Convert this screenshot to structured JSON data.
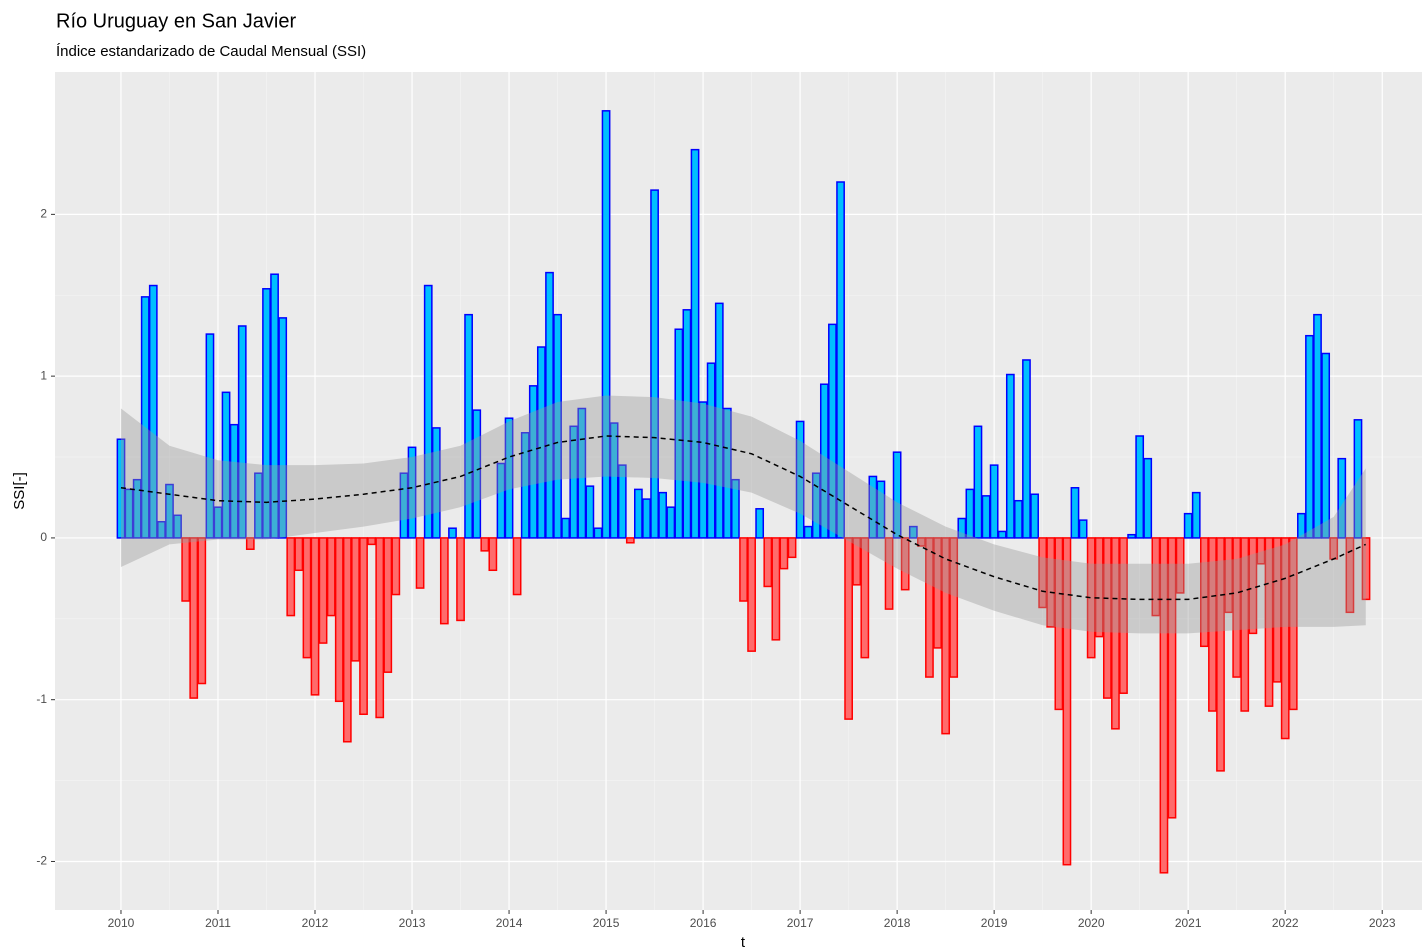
{
  "chart_data": {
    "type": "bar",
    "title": "Río Uruguay en San Javier",
    "subtitle": "Índice estandarizado de Caudal Mensual (SSI)",
    "x_label": "t",
    "y_label": "SSI[-]",
    "xlim": [
      2009.32,
      2023.41
    ],
    "ylim": [
      -2.3,
      2.88
    ],
    "xticks": [
      2010,
      2011,
      2012,
      2013,
      2014,
      2015,
      2016,
      2017,
      2018,
      2019,
      2020,
      2021,
      2022,
      2023
    ],
    "yticks": [
      -2,
      -1,
      0,
      1,
      2
    ],
    "grid": true,
    "positive_color": "#00bfff",
    "positive_border": "#0000ff",
    "negative_color": "#ff6b6b",
    "negative_border": "#ff0000",
    "x": [
      2010,
      2010.083,
      2010.167,
      2010.25,
      2010.333,
      2010.417,
      2010.5,
      2010.583,
      2010.667,
      2010.75,
      2010.833,
      2010.917,
      2011,
      2011.083,
      2011.167,
      2011.25,
      2011.333,
      2011.417,
      2011.5,
      2011.583,
      2011.667,
      2011.75,
      2011.833,
      2011.917,
      2012,
      2012.083,
      2012.167,
      2012.25,
      2012.333,
      2012.417,
      2012.5,
      2012.583,
      2012.667,
      2012.75,
      2012.833,
      2012.917,
      2013,
      2013.083,
      2013.167,
      2013.25,
      2013.333,
      2013.417,
      2013.5,
      2013.583,
      2013.667,
      2013.75,
      2013.833,
      2013.917,
      2014,
      2014.083,
      2014.167,
      2014.25,
      2014.333,
      2014.417,
      2014.5,
      2014.583,
      2014.667,
      2014.75,
      2014.833,
      2014.917,
      2015,
      2015.083,
      2015.167,
      2015.25,
      2015.333,
      2015.417,
      2015.5,
      2015.583,
      2015.667,
      2015.75,
      2015.833,
      2015.917,
      2016,
      2016.083,
      2016.167,
      2016.25,
      2016.333,
      2016.417,
      2016.5,
      2016.583,
      2016.667,
      2016.75,
      2016.833,
      2016.917,
      2017,
      2017.083,
      2017.167,
      2017.25,
      2017.333,
      2017.417,
      2017.5,
      2017.583,
      2017.667,
      2017.75,
      2017.833,
      2017.917,
      2018,
      2018.083,
      2018.167,
      2018.25,
      2018.333,
      2018.417,
      2018.5,
      2018.583,
      2018.667,
      2018.75,
      2018.833,
      2018.917,
      2019,
      2019.083,
      2019.167,
      2019.25,
      2019.333,
      2019.417,
      2019.5,
      2019.583,
      2019.667,
      2019.75,
      2019.833,
      2019.917,
      2020,
      2020.083,
      2020.167,
      2020.25,
      2020.333,
      2020.417,
      2020.5,
      2020.583,
      2020.667,
      2020.75,
      2020.833,
      2020.917,
      2021,
      2021.083,
      2021.167,
      2021.25,
      2021.333,
      2021.417,
      2021.5,
      2021.583,
      2021.667,
      2021.75,
      2021.833,
      2021.917,
      2022,
      2022.083,
      2022.167,
      2022.25,
      2022.333,
      2022.417,
      2022.5,
      2022.583,
      2022.667,
      2022.75,
      2022.833
    ],
    "values": [
      0.61,
      0.3,
      0.36,
      1.49,
      1.56,
      0.1,
      0.33,
      0.14,
      -0.39,
      -0.99,
      -0.9,
      1.26,
      0.19,
      0.9,
      0.7,
      1.31,
      -0.07,
      0.4,
      1.54,
      1.63,
      1.36,
      -0.48,
      -0.2,
      -0.74,
      -0.97,
      -0.65,
      -0.48,
      -1.01,
      -1.26,
      -0.76,
      -1.09,
      -0.04,
      -1.11,
      -0.83,
      -0.35,
      0.4,
      0.56,
      -0.31,
      1.56,
      0.68,
      -0.53,
      0.06,
      -0.51,
      1.38,
      0.79,
      -0.08,
      -0.2,
      0.46,
      0.74,
      -0.35,
      0.65,
      0.94,
      1.18,
      1.64,
      1.38,
      0.12,
      0.69,
      0.8,
      0.32,
      0.06,
      2.64,
      0.71,
      0.45,
      -0.03,
      0.3,
      0.24,
      2.15,
      0.28,
      0.19,
      1.29,
      1.41,
      2.4,
      0.84,
      1.08,
      1.45,
      0.8,
      0.36,
      -0.39,
      -0.7,
      0.18,
      -0.3,
      -0.63,
      -0.19,
      -0.12,
      0.72,
      0.07,
      0.4,
      0.95,
      1.32,
      2.2,
      -1.12,
      -0.29,
      -0.74,
      0.38,
      0.35,
      -0.44,
      0.53,
      -0.32,
      0.07,
      -0.05,
      -0.86,
      -0.68,
      -1.21,
      -0.86,
      0.12,
      0.3,
      0.69,
      0.26,
      0.45,
      0.04,
      1.01,
      0.23,
      1.1,
      0.27,
      -0.43,
      -0.55,
      -1.06,
      -2.02,
      0.31,
      0.11,
      -0.74,
      -0.61,
      -0.99,
      -1.18,
      -0.96,
      0.02,
      0.63,
      0.49,
      -0.48,
      -2.07,
      -1.73,
      -0.34,
      0.15,
      0.28,
      -0.67,
      -1.07,
      -1.44,
      -0.46,
      -0.86,
      -1.07,
      -0.59,
      -0.16,
      -1.04,
      -0.89,
      -1.24,
      -1.06,
      0.15,
      1.25,
      1.38,
      1.14,
      -0.13,
      0.49,
      -0.46,
      0.73,
      -0.38
    ],
    "smooth": {
      "x": [
        2010,
        2010.5,
        2011,
        2011.5,
        2012,
        2012.5,
        2013,
        2013.5,
        2014,
        2014.5,
        2015,
        2015.5,
        2016,
        2016.5,
        2017,
        2017.5,
        2018,
        2018.5,
        2019,
        2019.5,
        2020,
        2020.5,
        2021,
        2021.5,
        2022,
        2022.5,
        2022.83
      ],
      "values": [
        0.31,
        0.27,
        0.23,
        0.22,
        0.24,
        0.27,
        0.31,
        0.38,
        0.5,
        0.59,
        0.63,
        0.62,
        0.59,
        0.52,
        0.38,
        0.2,
        0.02,
        -0.13,
        -0.24,
        -0.33,
        -0.37,
        -0.38,
        -0.38,
        -0.34,
        -0.25,
        -0.13,
        -0.04
      ],
      "upper": [
        0.8,
        0.57,
        0.48,
        0.45,
        0.45,
        0.46,
        0.5,
        0.57,
        0.72,
        0.84,
        0.88,
        0.87,
        0.83,
        0.75,
        0.6,
        0.41,
        0.22,
        0.07,
        -0.04,
        -0.12,
        -0.16,
        -0.16,
        -0.16,
        -0.13,
        -0.04,
        0.13,
        0.43
      ],
      "lower": [
        -0.18,
        -0.04,
        -0.01,
        -0.01,
        0.03,
        0.07,
        0.12,
        0.19,
        0.3,
        0.36,
        0.38,
        0.37,
        0.34,
        0.28,
        0.15,
        -0.02,
        -0.19,
        -0.34,
        -0.45,
        -0.54,
        -0.58,
        -0.59,
        -0.59,
        -0.57,
        -0.55,
        -0.55,
        -0.54
      ],
      "color": "#000000",
      "band_color": "#999999"
    }
  }
}
